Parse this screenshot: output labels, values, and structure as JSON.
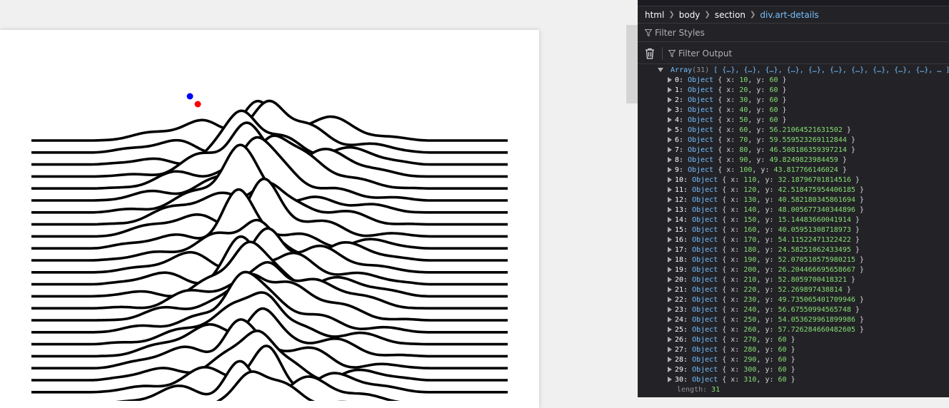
{
  "colors": {
    "page_bg": "#f0f0f0",
    "card_bg": "#ffffff",
    "line_color": "#000000",
    "marker_blue": "#0000ff",
    "marker_red": "#ff0000",
    "devtools_bg": "#232327",
    "devtools_text": "#d7d7db",
    "devtools_selected": "#75bfff",
    "devtools_number": "#86de74"
  },
  "art": {
    "description_icon": "ridgeline-plot",
    "line_count": 24,
    "markers": [
      {
        "name": "blue-marker",
        "color": "#0000ff"
      },
      {
        "name": "red-marker",
        "color": "#ff0000"
      }
    ]
  },
  "devtools": {
    "breadcrumbs": [
      "html",
      "body",
      "section",
      "div.art-details"
    ],
    "filter_styles_placeholder": "Filter Styles",
    "filter_output_placeholder": "Filter Output",
    "icons": {
      "trash": "trash-icon",
      "filter": "funnel-icon"
    },
    "array_summary": {
      "label": "Array",
      "count": "(31)",
      "preview": "[ {…}, {…}, {…}, {…}, {…}, {…}, {…}, {…}, {…}, {…}, … ]"
    },
    "entries": [
      {
        "index": "0",
        "x": "10",
        "y": "60"
      },
      {
        "index": "1",
        "x": "20",
        "y": "60"
      },
      {
        "index": "2",
        "x": "30",
        "y": "60"
      },
      {
        "index": "3",
        "x": "40",
        "y": "60"
      },
      {
        "index": "4",
        "x": "50",
        "y": "60"
      },
      {
        "index": "5",
        "x": "60",
        "y": "56.21064521631502"
      },
      {
        "index": "6",
        "x": "70",
        "y": "59.559523269112844"
      },
      {
        "index": "7",
        "x": "80",
        "y": "46.508186359397214"
      },
      {
        "index": "8",
        "x": "90",
        "y": "49.8249823984459"
      },
      {
        "index": "9",
        "x": "100",
        "y": "43.817766146024"
      },
      {
        "index": "10",
        "x": "110",
        "y": "32.18796701814516"
      },
      {
        "index": "11",
        "x": "120",
        "y": "42.518475954406185"
      },
      {
        "index": "12",
        "x": "130",
        "y": "40.582180345861694"
      },
      {
        "index": "13",
        "x": "140",
        "y": "48.005677340344896"
      },
      {
        "index": "14",
        "x": "150",
        "y": "15.14483660041914"
      },
      {
        "index": "15",
        "x": "160",
        "y": "40.05951308718973"
      },
      {
        "index": "16",
        "x": "170",
        "y": "54.11522471322422"
      },
      {
        "index": "17",
        "x": "180",
        "y": "24.58251062433495"
      },
      {
        "index": "18",
        "x": "190",
        "y": "52.070510575980215"
      },
      {
        "index": "19",
        "x": "200",
        "y": "26.204466695658667"
      },
      {
        "index": "20",
        "x": "210",
        "y": "52.8059700418321"
      },
      {
        "index": "21",
        "x": "220",
        "y": "52.269897438814"
      },
      {
        "index": "22",
        "x": "230",
        "y": "49.735065401709946"
      },
      {
        "index": "23",
        "x": "240",
        "y": "56.67550994565748"
      },
      {
        "index": "24",
        "x": "250",
        "y": "54.053629961899986"
      },
      {
        "index": "25",
        "x": "260",
        "y": "57.726284660482605"
      },
      {
        "index": "26",
        "x": "270",
        "y": "60"
      },
      {
        "index": "27",
        "x": "280",
        "y": "60"
      },
      {
        "index": "28",
        "x": "290",
        "y": "60"
      },
      {
        "index": "29",
        "x": "300",
        "y": "60"
      },
      {
        "index": "30",
        "x": "310",
        "y": "60"
      }
    ],
    "length_label": "length",
    "length_value": "31",
    "object_label": "Object"
  }
}
